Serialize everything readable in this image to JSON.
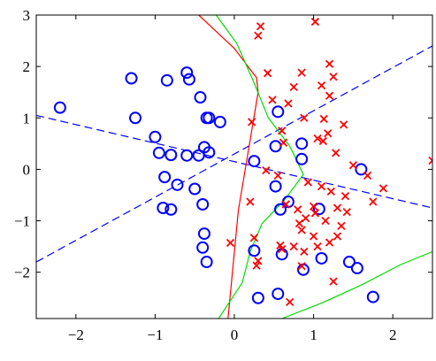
{
  "chart_data": {
    "type": "scatter",
    "title": "",
    "xlabel": "",
    "ylabel": "",
    "xlim": [
      -2.5,
      2.5
    ],
    "ylim": [
      -2.9,
      3.0
    ],
    "xticks": [
      -2,
      -1,
      0,
      1,
      2
    ],
    "yticks": [
      -2,
      -1,
      0,
      1,
      2,
      3
    ],
    "xtick_labels": [
      "−2",
      "−1",
      "0",
      "1",
      "2"
    ],
    "ytick_labels": [
      "−2",
      "−1",
      "0",
      "1",
      "2",
      "3"
    ],
    "grid": false,
    "legend": "none",
    "series": [
      {
        "marker": "circle",
        "color": "#0000ff",
        "points": [
          [
            -2.2,
            1.2
          ],
          [
            -1.3,
            1.77
          ],
          [
            -1.25,
            1.0
          ],
          [
            -1.0,
            0.63
          ],
          [
            -0.85,
            1.73
          ],
          [
            -0.6,
            1.88
          ],
          [
            -0.57,
            1.75
          ],
          [
            -0.43,
            1.4
          ],
          [
            -0.35,
            1.0
          ],
          [
            -0.32,
            1.0
          ],
          [
            -0.38,
            0.43
          ],
          [
            -0.32,
            0.33
          ],
          [
            -0.18,
            0.92
          ],
          [
            -0.95,
            0.32
          ],
          [
            -0.8,
            0.28
          ],
          [
            -0.6,
            0.27
          ],
          [
            -0.45,
            0.27
          ],
          [
            -0.88,
            -0.15
          ],
          [
            -0.72,
            -0.3
          ],
          [
            -0.5,
            -0.38
          ],
          [
            -0.9,
            -0.75
          ],
          [
            -0.8,
            -0.78
          ],
          [
            -0.4,
            -0.68
          ],
          [
            -0.38,
            -1.25
          ],
          [
            -0.4,
            -1.52
          ],
          [
            -0.35,
            -1.8
          ],
          [
            0.25,
            0.16
          ],
          [
            0.55,
            1.12
          ],
          [
            0.52,
            0.45
          ],
          [
            0.85,
            0.5
          ],
          [
            0.85,
            0.2
          ],
          [
            0.52,
            -0.33
          ],
          [
            0.58,
            -0.78
          ],
          [
            0.68,
            -0.63
          ],
          [
            1.07,
            -0.77
          ],
          [
            0.25,
            -1.58
          ],
          [
            0.6,
            -1.65
          ],
          [
            0.87,
            -1.95
          ],
          [
            1.1,
            -1.73
          ],
          [
            1.55,
            -1.92
          ],
          [
            1.45,
            -1.8
          ],
          [
            1.6,
            0.0
          ],
          [
            1.75,
            -2.48
          ],
          [
            0.3,
            -2.5
          ],
          [
            0.55,
            -2.42
          ]
        ]
      },
      {
        "marker": "x",
        "color": "#ff0000",
        "points": [
          [
            0.33,
            2.78
          ],
          [
            0.3,
            2.6
          ],
          [
            1.02,
            2.87
          ],
          [
            0.42,
            1.87
          ],
          [
            0.85,
            1.88
          ],
          [
            1.2,
            2.05
          ],
          [
            1.25,
            1.8
          ],
          [
            1.1,
            1.63
          ],
          [
            0.75,
            1.6
          ],
          [
            1.2,
            1.43
          ],
          [
            0.48,
            1.35
          ],
          [
            0.68,
            1.28
          ],
          [
            0.22,
            0.92
          ],
          [
            0.88,
            1.0
          ],
          [
            1.13,
            0.98
          ],
          [
            0.6,
            0.75
          ],
          [
            1.05,
            0.6
          ],
          [
            1.18,
            0.7
          ],
          [
            1.38,
            0.87
          ],
          [
            0.62,
            0.52
          ],
          [
            1.12,
            0.55
          ],
          [
            1.28,
            0.32
          ],
          [
            1.5,
            0.08
          ],
          [
            1.68,
            -0.12
          ],
          [
            2.5,
            0.17
          ],
          [
            0.4,
            -0.02
          ],
          [
            0.55,
            -0.12
          ],
          [
            0.93,
            -0.25
          ],
          [
            1.1,
            -0.33
          ],
          [
            1.22,
            -0.43
          ],
          [
            1.4,
            -0.52
          ],
          [
            1.88,
            -0.37
          ],
          [
            1.75,
            -0.63
          ],
          [
            0.2,
            -0.63
          ],
          [
            0.65,
            -0.68
          ],
          [
            0.8,
            -0.78
          ],
          [
            1.0,
            -0.72
          ],
          [
            1.3,
            -0.75
          ],
          [
            1.42,
            -0.83
          ],
          [
            1.02,
            -0.85
          ],
          [
            0.9,
            -0.95
          ],
          [
            0.82,
            -1.05
          ],
          [
            1.15,
            -1.0
          ],
          [
            1.35,
            -1.1
          ],
          [
            0.85,
            -1.18
          ],
          [
            1.0,
            -1.3
          ],
          [
            0.25,
            -1.33
          ],
          [
            0.58,
            -1.48
          ],
          [
            0.75,
            -1.5
          ],
          [
            1.2,
            -1.42
          ],
          [
            1.3,
            -1.3
          ],
          [
            0.88,
            -1.6
          ],
          [
            1.05,
            -1.5
          ],
          [
            0.6,
            -1.55
          ],
          [
            0.3,
            -1.78
          ],
          [
            0.28,
            -1.87
          ],
          [
            0.85,
            -1.88
          ],
          [
            1.25,
            -2.18
          ],
          [
            0.7,
            -2.58
          ],
          [
            -0.05,
            -1.43
          ]
        ]
      }
    ],
    "curves": [
      {
        "style": "dashed",
        "color": "#0000ff",
        "points": [
          [
            -2.5,
            -1.8
          ],
          [
            2.5,
            2.4
          ]
        ]
      },
      {
        "style": "dashed",
        "color": "#0000ff",
        "points": [
          [
            -2.5,
            1.05
          ],
          [
            2.5,
            -0.75
          ]
        ]
      },
      {
        "style": "solid",
        "color": "#ff0000",
        "points": [
          [
            -0.45,
            3.0
          ],
          [
            0.0,
            2.35
          ],
          [
            0.28,
            1.78
          ],
          [
            0.3,
            1.5
          ],
          [
            0.05,
            -0.8
          ],
          [
            -0.08,
            -2.9
          ]
        ]
      },
      {
        "style": "solid",
        "color": "#00dd00",
        "points": [
          [
            -0.23,
            3.0
          ],
          [
            0.03,
            2.45
          ],
          [
            0.23,
            1.75
          ],
          [
            0.43,
            1.0
          ],
          [
            0.7,
            0.45
          ],
          [
            0.87,
            -0.1
          ],
          [
            0.63,
            -0.6
          ],
          [
            0.35,
            -1.05
          ],
          [
            0.2,
            -1.6
          ],
          [
            0.1,
            -2.2
          ],
          [
            -0.2,
            -2.9
          ]
        ]
      },
      {
        "style": "solid",
        "color": "#00dd00",
        "points": [
          [
            0.6,
            -2.9
          ],
          [
            1.1,
            -2.6
          ],
          [
            1.6,
            -2.25
          ],
          [
            2.1,
            -1.85
          ],
          [
            2.5,
            -1.6
          ]
        ]
      }
    ]
  }
}
